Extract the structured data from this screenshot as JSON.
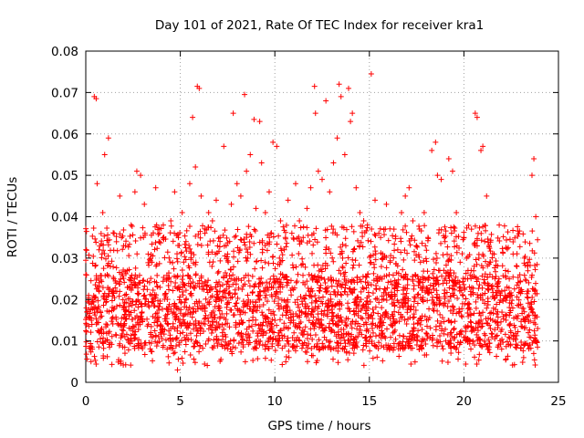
{
  "chart_data": {
    "type": "scatter",
    "title": "Day 101 of 2021, Rate Of TEC Index for receiver kra1",
    "xlabel": "GPS time / hours",
    "ylabel": "ROTI / TECUs",
    "xlim": [
      0,
      25
    ],
    "ylim": [
      0,
      0.08
    ],
    "x_ticks": [
      0,
      5,
      10,
      15,
      20,
      25
    ],
    "x_tick_labels": [
      "0",
      "5",
      "10",
      "15",
      "20",
      "25"
    ],
    "y_ticks": [
      0,
      0.01,
      0.02,
      0.03,
      0.04,
      0.05,
      0.06,
      0.07,
      0.08
    ],
    "y_tick_labels": [
      "0",
      "0.01",
      "0.02",
      "0.03",
      "0.04",
      "0.05",
      "0.06",
      "0.07",
      "0.08"
    ],
    "grid": true,
    "marker": "plus",
    "color": "#ff0000",
    "points": [
      [
        0.15,
        0.021
      ],
      [
        0.3,
        0.015
      ],
      [
        0.45,
        0.069
      ],
      [
        0.55,
        0.0685
      ],
      [
        0.6,
        0.048
      ],
      [
        0.7,
        0.032
      ],
      [
        0.9,
        0.041
      ],
      [
        1.0,
        0.055
      ],
      [
        1.2,
        0.059
      ],
      [
        1.3,
        0.028
      ],
      [
        1.5,
        0.036
      ],
      [
        1.6,
        0.024
      ],
      [
        1.8,
        0.045
      ],
      [
        2.0,
        0.033
      ],
      [
        2.2,
        0.027
      ],
      [
        2.4,
        0.038
      ],
      [
        2.6,
        0.046
      ],
      [
        2.7,
        0.051
      ],
      [
        2.9,
        0.05
      ],
      [
        3.1,
        0.043
      ],
      [
        3.3,
        0.031
      ],
      [
        3.5,
        0.029
      ],
      [
        3.7,
        0.047
      ],
      [
        3.9,
        0.036
      ],
      [
        4.1,
        0.038
      ],
      [
        4.3,
        0.025
      ],
      [
        4.5,
        0.039
      ],
      [
        4.7,
        0.046
      ],
      [
        4.85,
        0.003
      ],
      [
        4.9,
        0.035
      ],
      [
        5.1,
        0.041
      ],
      [
        5.3,
        0.034
      ],
      [
        5.5,
        0.048
      ],
      [
        5.65,
        0.064
      ],
      [
        5.8,
        0.052
      ],
      [
        5.9,
        0.0715
      ],
      [
        6.0,
        0.071
      ],
      [
        6.1,
        0.045
      ],
      [
        6.3,
        0.036
      ],
      [
        6.5,
        0.041
      ],
      [
        6.7,
        0.039
      ],
      [
        6.9,
        0.044
      ],
      [
        7.1,
        0.035
      ],
      [
        7.3,
        0.057
      ],
      [
        7.5,
        0.031
      ],
      [
        7.7,
        0.043
      ],
      [
        7.8,
        0.065
      ],
      [
        8.0,
        0.048
      ],
      [
        8.2,
        0.045
      ],
      [
        8.4,
        0.0695
      ],
      [
        8.5,
        0.051
      ],
      [
        8.7,
        0.055
      ],
      [
        8.9,
        0.0635
      ],
      [
        9.0,
        0.042
      ],
      [
        9.2,
        0.063
      ],
      [
        9.3,
        0.053
      ],
      [
        9.5,
        0.041
      ],
      [
        9.7,
        0.046
      ],
      [
        9.9,
        0.058
      ],
      [
        10.1,
        0.057
      ],
      [
        10.3,
        0.039
      ],
      [
        10.5,
        0.032
      ],
      [
        10.7,
        0.044
      ],
      [
        10.9,
        0.036
      ],
      [
        11.1,
        0.048
      ],
      [
        11.3,
        0.039
      ],
      [
        11.5,
        0.035
      ],
      [
        11.7,
        0.042
      ],
      [
        11.9,
        0.047
      ],
      [
        12.1,
        0.0715
      ],
      [
        12.15,
        0.065
      ],
      [
        12.3,
        0.051
      ],
      [
        12.5,
        0.049
      ],
      [
        12.7,
        0.068
      ],
      [
        12.9,
        0.046
      ],
      [
        13.1,
        0.053
      ],
      [
        13.3,
        0.059
      ],
      [
        13.4,
        0.072
      ],
      [
        13.5,
        0.069
      ],
      [
        13.7,
        0.055
      ],
      [
        13.9,
        0.071
      ],
      [
        14.0,
        0.063
      ],
      [
        14.1,
        0.065
      ],
      [
        14.3,
        0.047
      ],
      [
        14.5,
        0.041
      ],
      [
        14.7,
        0.039
      ],
      [
        14.9,
        0.038
      ],
      [
        15.1,
        0.0745
      ],
      [
        15.3,
        0.044
      ],
      [
        15.5,
        0.036
      ],
      [
        15.7,
        0.031
      ],
      [
        15.9,
        0.043
      ],
      [
        16.1,
        0.029
      ],
      [
        16.3,
        0.037
      ],
      [
        16.5,
        0.032
      ],
      [
        16.7,
        0.041
      ],
      [
        16.9,
        0.045
      ],
      [
        17.1,
        0.047
      ],
      [
        17.3,
        0.039
      ],
      [
        17.5,
        0.033
      ],
      [
        17.7,
        0.029
      ],
      [
        17.9,
        0.041
      ],
      [
        18.1,
        0.035
      ],
      [
        18.3,
        0.056
      ],
      [
        18.5,
        0.058
      ],
      [
        18.6,
        0.05
      ],
      [
        18.8,
        0.049
      ],
      [
        19.0,
        0.034
      ],
      [
        19.2,
        0.054
      ],
      [
        19.4,
        0.051
      ],
      [
        19.6,
        0.041
      ],
      [
        19.8,
        0.029
      ],
      [
        20.0,
        0.035
      ],
      [
        20.2,
        0.025
      ],
      [
        20.4,
        0.037
      ],
      [
        20.6,
        0.065
      ],
      [
        20.7,
        0.064
      ],
      [
        20.9,
        0.056
      ],
      [
        21.0,
        0.057
      ],
      [
        21.2,
        0.045
      ],
      [
        21.4,
        0.029
      ],
      [
        21.6,
        0.031
      ],
      [
        21.8,
        0.024
      ],
      [
        22.0,
        0.022
      ],
      [
        22.2,
        0.027
      ],
      [
        22.4,
        0.025
      ],
      [
        22.6,
        0.031
      ],
      [
        22.8,
        0.028
      ],
      [
        23.0,
        0.022
      ],
      [
        23.2,
        0.03
      ],
      [
        23.4,
        0.029
      ],
      [
        23.6,
        0.05
      ],
      [
        23.7,
        0.054
      ],
      [
        23.8,
        0.04
      ],
      [
        23.9,
        0.013
      ]
    ],
    "bulk": {
      "x_range": [
        0,
        23.9
      ],
      "y_baseline_range": [
        0.008,
        0.026
      ],
      "y_min": 0.004,
      "count": 3000
    }
  }
}
